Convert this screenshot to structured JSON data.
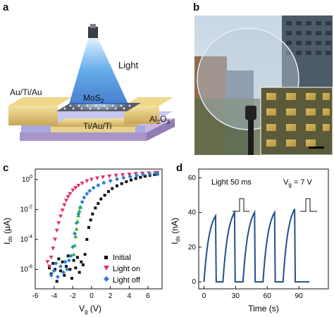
{
  "panels": {
    "a": {
      "label": "a",
      "light_label": "Light",
      "contact_label": "Au/Ti/Au",
      "channel_label": "MoS",
      "channel_sub": "2",
      "dielectric_label": "Al",
      "dielectric_sub1": "2",
      "dielectric_mid": "O",
      "dielectric_sub2": "3",
      "gate_label": "Ti/Au/Ti"
    },
    "b": {
      "label": "b"
    },
    "c": {
      "label": "c"
    },
    "d": {
      "label": "d",
      "annotation_light": "Light  50 ms",
      "annotation_vg_main": "V",
      "annotation_vg_sub": "g",
      "annotation_vg_value": " = 7 V"
    }
  },
  "chart_data": [
    {
      "panel": "c",
      "type": "scatter",
      "xlabel_main": "V",
      "xlabel_sub": "g",
      "xlabel_unit": " (V)",
      "ylabel_main": "I",
      "ylabel_sub": "ds",
      "ylabel_unit": " (μA)",
      "y_scale": "log",
      "xlim": [
        -6,
        7.5
      ],
      "ylim_log10": [
        -7.3,
        0.7
      ],
      "x_ticks": [
        -6,
        -4,
        -2,
        0,
        2,
        4,
        6
      ],
      "x_tick_labels": [
        "-6",
        "-4",
        "-2",
        "0",
        "2",
        "4",
        "6"
      ],
      "y_ticks_log10": [
        0,
        -2,
        -4,
        -6
      ],
      "legend_position": "bottom-right",
      "series": [
        {
          "name": "Initial",
          "marker": "square",
          "color": "#111111",
          "points": [
            [
              -4.5,
              -5.9
            ],
            [
              -4.3,
              -6.3
            ],
            [
              -4.1,
              -5.6
            ],
            [
              -3.9,
              -6.0
            ],
            [
              -3.7,
              -6.8
            ],
            [
              -3.5,
              -5.3
            ],
            [
              -3.3,
              -6.1
            ],
            [
              -3.1,
              -5.5
            ],
            [
              -2.9,
              -6.4
            ],
            [
              -2.7,
              -5.8
            ],
            [
              -2.5,
              -5.1
            ],
            [
              -2.3,
              -6.0
            ],
            [
              -2.1,
              -6.6
            ],
            [
              -1.9,
              -5.4
            ],
            [
              -1.7,
              -5.9
            ],
            [
              -1.5,
              -5.2
            ],
            [
              -1.3,
              -6.2
            ],
            [
              -1.1,
              -5.5
            ],
            [
              -0.9,
              -5.7
            ],
            [
              -0.7,
              -5.0
            ],
            [
              -0.5,
              -4.0
            ],
            [
              -0.3,
              -3.2
            ],
            [
              -0.1,
              -2.7
            ],
            [
              0.1,
              -2.3
            ],
            [
              0.4,
              -1.9
            ],
            [
              0.7,
              -1.6
            ],
            [
              1.0,
              -1.3
            ],
            [
              1.4,
              -1.05
            ],
            [
              1.8,
              -0.8
            ],
            [
              2.2,
              -0.6
            ],
            [
              2.7,
              -0.42
            ],
            [
              3.2,
              -0.27
            ],
            [
              3.7,
              -0.14
            ],
            [
              4.2,
              -0.03
            ],
            [
              4.7,
              0.07
            ],
            [
              5.2,
              0.15
            ],
            [
              5.7,
              0.22
            ],
            [
              6.2,
              0.28
            ],
            [
              6.7,
              0.33
            ],
            [
              7.0,
              0.36
            ]
          ]
        },
        {
          "name": "Light on",
          "marker": "triangle-down",
          "color": "#e0306a",
          "points": [
            [
              -4.7,
              -5.5
            ],
            [
              -4.5,
              -5.8
            ],
            [
              -4.3,
              -5.2
            ],
            [
              -4.1,
              -4.6
            ],
            [
              -3.9,
              -4.0
            ],
            [
              -3.7,
              -3.4
            ],
            [
              -3.5,
              -2.9
            ],
            [
              -3.3,
              -2.45
            ],
            [
              -3.1,
              -2.05
            ],
            [
              -2.9,
              -1.7
            ],
            [
              -2.7,
              -1.4
            ],
            [
              -2.5,
              -1.15
            ],
            [
              -2.3,
              -0.95
            ],
            [
              -2.0,
              -0.72
            ],
            [
              -1.7,
              -0.55
            ],
            [
              -1.4,
              -0.4
            ],
            [
              -1.0,
              -0.25
            ],
            [
              -0.5,
              -0.1
            ],
            [
              0.0,
              0.0
            ],
            [
              0.6,
              0.09
            ],
            [
              1.2,
              0.16
            ],
            [
              1.9,
              0.22
            ],
            [
              2.6,
              0.27
            ],
            [
              3.3,
              0.31
            ],
            [
              4.0,
              0.35
            ],
            [
              4.7,
              0.38
            ],
            [
              5.4,
              0.41
            ],
            [
              6.1,
              0.43
            ],
            [
              6.8,
              0.45
            ],
            [
              7.0,
              0.46
            ]
          ]
        },
        {
          "name": "Light off",
          "marker": "diamond",
          "color": "#2f7fd6",
          "points": [
            [
              -4.3,
              -6.4
            ],
            [
              -4.0,
              -6.1
            ],
            [
              -3.8,
              -5.6
            ],
            [
              -3.6,
              -6.5
            ],
            [
              -3.3,
              -5.8
            ],
            [
              -3.0,
              -6.2
            ],
            [
              -2.8,
              -5.5
            ],
            [
              -2.6,
              -6.0
            ],
            [
              -2.4,
              -5.4
            ],
            [
              -2.2,
              -5.1
            ],
            [
              -2.0,
              -4.5
            ],
            [
              -1.8,
              -3.6
            ],
            [
              -1.6,
              -2.9
            ],
            [
              -1.4,
              -2.3
            ],
            [
              -1.2,
              -1.85
            ],
            [
              -1.0,
              -1.5
            ],
            [
              -0.8,
              -1.2
            ],
            [
              -0.5,
              -0.95
            ],
            [
              -0.2,
              -0.75
            ],
            [
              0.2,
              -0.55
            ],
            [
              0.7,
              -0.38
            ],
            [
              1.3,
              -0.22
            ],
            [
              2.0,
              -0.08
            ],
            [
              2.7,
              0.03
            ],
            [
              3.4,
              0.12
            ],
            [
              4.1,
              0.2
            ],
            [
              4.8,
              0.26
            ],
            [
              5.5,
              0.32
            ],
            [
              6.2,
              0.37
            ],
            [
              6.8,
              0.41
            ],
            [
              7.0,
              0.42
            ]
          ]
        },
        {
          "name": "",
          "marker": "triangle-up",
          "color": "#2db34a",
          "points": [
            [
              -1.9,
              -5.0
            ],
            [
              -1.8,
              -4.4
            ],
            [
              -1.7,
              -3.8
            ],
            [
              -1.6,
              -3.3
            ],
            [
              -1.5,
              -2.8
            ],
            [
              -1.4,
              -2.4
            ],
            [
              -1.3,
              -2.1
            ],
            [
              -1.2,
              -1.85
            ]
          ]
        }
      ]
    },
    {
      "panel": "d",
      "type": "line",
      "color": "#244f8c",
      "xlabel": "Time (s)",
      "ylabel_main": "I",
      "ylabel_sub": "ds",
      "ylabel_unit": " (nA)",
      "xlim": [
        -5,
        118
      ],
      "ylim": [
        -4,
        65
      ],
      "x_ticks": [
        0,
        30,
        60,
        90
      ],
      "y_ticks": [
        0,
        20,
        40,
        60
      ],
      "pulses": [
        {
          "start": 0,
          "peak_time": 11,
          "peak": 38
        },
        {
          "start": 18,
          "peak_time": 29,
          "peak": 40
        },
        {
          "start": 37,
          "peak_time": 48,
          "peak": 40
        },
        {
          "start": 56,
          "peak_time": 67,
          "peak": 40
        },
        {
          "start": 75,
          "peak_time": 86,
          "peak": 42
        }
      ],
      "end_time": 100
    }
  ]
}
